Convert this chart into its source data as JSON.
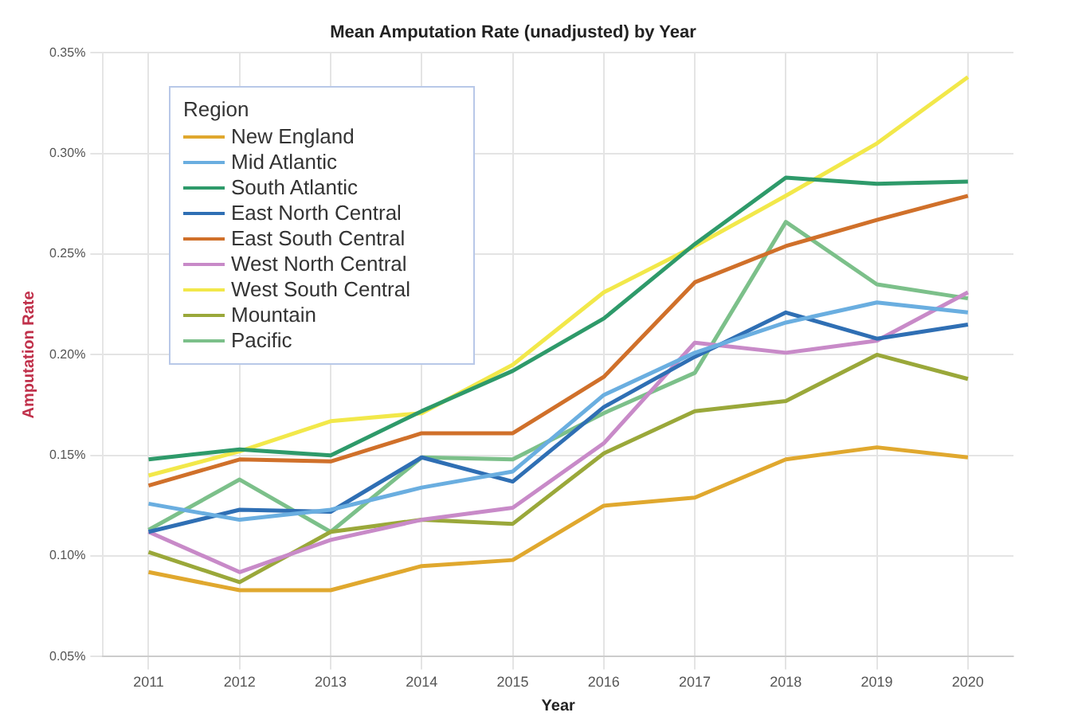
{
  "chart_data": {
    "type": "line",
    "title": "Mean Amputation Rate (unadjusted) by Year",
    "xlabel": "Year",
    "ylabel": "Amputation Rate",
    "legend_title": "Region",
    "legend": "top left",
    "grid": true,
    "marker": "none",
    "line_style": "solid",
    "categories": [
      "2011",
      "2012",
      "2013",
      "2014",
      "2015",
      "2016",
      "2017",
      "2018",
      "2019",
      "2020"
    ],
    "ylim": [
      0.05,
      0.35
    ],
    "yticks": [
      {
        "value": 0.05,
        "label": "0.05%"
      },
      {
        "value": 0.1,
        "label": "0.10%"
      },
      {
        "value": 0.15,
        "label": "0.15%"
      },
      {
        "value": 0.2,
        "label": "0.20%"
      },
      {
        "value": 0.25,
        "label": "0.25%"
      },
      {
        "value": 0.3,
        "label": "0.30%"
      },
      {
        "value": 0.35,
        "label": "0.35%"
      }
    ],
    "series": [
      {
        "name": "New England",
        "color": "#e0a82e",
        "values": [
          0.092,
          0.083,
          0.083,
          0.095,
          0.098,
          0.125,
          0.129,
          0.148,
          0.154,
          0.149
        ]
      },
      {
        "name": "Mid Atlantic",
        "color": "#6aaee0",
        "values": [
          0.126,
          0.118,
          0.123,
          0.134,
          0.142,
          0.18,
          0.201,
          0.216,
          0.226,
          0.221
        ]
      },
      {
        "name": "South Atlantic",
        "color": "#2e9a6a",
        "values": [
          0.148,
          0.153,
          0.15,
          0.172,
          0.192,
          0.218,
          0.255,
          0.288,
          0.285,
          0.286
        ]
      },
      {
        "name": "East North Central",
        "color": "#2f6fb4",
        "values": [
          0.112,
          0.123,
          0.122,
          0.149,
          0.137,
          0.174,
          0.199,
          0.221,
          0.208,
          0.215
        ]
      },
      {
        "name": "East South Central",
        "color": "#d0702a",
        "values": [
          0.135,
          0.148,
          0.147,
          0.161,
          0.161,
          0.189,
          0.236,
          0.254,
          0.267,
          0.279
        ]
      },
      {
        "name": "West North Central",
        "color": "#c88ac8",
        "values": [
          0.112,
          0.092,
          0.108,
          0.118,
          0.124,
          0.156,
          0.206,
          0.201,
          0.207,
          0.231
        ]
      },
      {
        "name": "West South Central",
        "color": "#f2e84a",
        "values": [
          0.14,
          0.152,
          0.167,
          0.171,
          0.195,
          0.231,
          0.254,
          0.279,
          0.305,
          0.338
        ]
      },
      {
        "name": "Mountain",
        "color": "#9aa83a",
        "values": [
          0.102,
          0.087,
          0.112,
          0.118,
          0.116,
          0.151,
          0.172,
          0.177,
          0.2,
          0.188
        ]
      },
      {
        "name": "Pacific",
        "color": "#7cc08a",
        "values": [
          0.113,
          0.138,
          0.112,
          0.149,
          0.148,
          0.171,
          0.191,
          0.266,
          0.235,
          0.228
        ]
      }
    ]
  }
}
